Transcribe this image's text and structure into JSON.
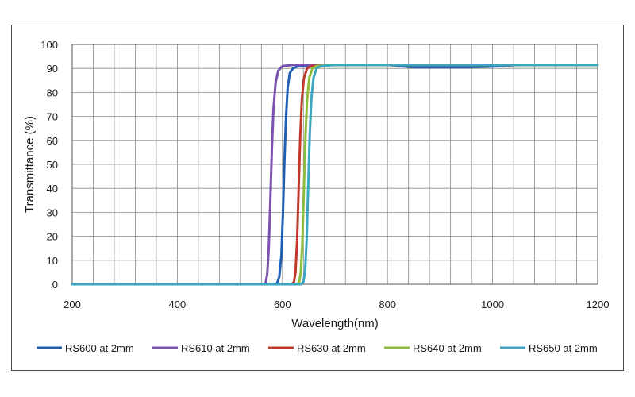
{
  "chart_data": {
    "type": "line",
    "title": "",
    "xlabel": "Wavelength(nm)",
    "ylabel": "Transmittance (%)",
    "xlim": [
      200,
      1200
    ],
    "ylim": [
      0,
      100
    ],
    "x_ticks": [
      200,
      400,
      600,
      800,
      1000,
      1200
    ],
    "y_ticks": [
      0,
      10,
      20,
      30,
      40,
      50,
      60,
      70,
      80,
      90,
      100
    ],
    "grid": true,
    "legend_position": "bottom",
    "series": [
      {
        "name": "RS600 at 2mm",
        "color": "#1f5fb4",
        "points": [
          [
            200,
            0
          ],
          [
            586,
            0
          ],
          [
            590,
            0.5
          ],
          [
            594,
            3
          ],
          [
            598,
            12
          ],
          [
            601,
            30
          ],
          [
            604,
            52
          ],
          [
            607,
            70
          ],
          [
            610,
            82
          ],
          [
            614,
            88
          ],
          [
            620,
            90
          ],
          [
            630,
            91
          ],
          [
            660,
            91
          ],
          [
            700,
            91.5
          ],
          [
            800,
            91.5
          ],
          [
            850,
            90.5
          ],
          [
            900,
            90.5
          ],
          [
            950,
            90.5
          ],
          [
            1000,
            90.8
          ],
          [
            1050,
            91.5
          ],
          [
            1200,
            91.5
          ]
        ]
      },
      {
        "name": "RS610 at 2mm",
        "color": "#7b50b0",
        "points": [
          [
            200,
            0
          ],
          [
            564,
            0
          ],
          [
            568,
            0.5
          ],
          [
            571,
            4
          ],
          [
            574,
            15
          ],
          [
            577,
            35
          ],
          [
            580,
            57
          ],
          [
            583,
            73
          ],
          [
            587,
            84
          ],
          [
            592,
            89
          ],
          [
            600,
            91
          ],
          [
            620,
            91.5
          ],
          [
            700,
            91.5
          ],
          [
            1200,
            91.5
          ]
        ]
      },
      {
        "name": "RS630 at 2mm",
        "color": "#c0392b",
        "points": [
          [
            200,
            0
          ],
          [
            618,
            0
          ],
          [
            622,
            1
          ],
          [
            625,
            5
          ],
          [
            628,
            18
          ],
          [
            631,
            40
          ],
          [
            634,
            62
          ],
          [
            637,
            77
          ],
          [
            641,
            86
          ],
          [
            647,
            90
          ],
          [
            655,
            91
          ],
          [
            680,
            91.5
          ],
          [
            1200,
            91.5
          ]
        ]
      },
      {
        "name": "RS640 at 2mm",
        "color": "#8dbb3a",
        "points": [
          [
            200,
            0
          ],
          [
            628,
            0
          ],
          [
            632,
            1
          ],
          [
            635,
            5
          ],
          [
            638,
            18
          ],
          [
            641,
            40
          ],
          [
            644,
            62
          ],
          [
            647,
            77
          ],
          [
            651,
            86
          ],
          [
            657,
            90
          ],
          [
            665,
            91
          ],
          [
            690,
            91.5
          ],
          [
            1200,
            91.5
          ]
        ]
      },
      {
        "name": "RS650 at 2mm",
        "color": "#3ba7c0",
        "points": [
          [
            200,
            0
          ],
          [
            636,
            0
          ],
          [
            640,
            1
          ],
          [
            643,
            5
          ],
          [
            646,
            18
          ],
          [
            649,
            40
          ],
          [
            652,
            62
          ],
          [
            655,
            77
          ],
          [
            659,
            86
          ],
          [
            665,
            90
          ],
          [
            673,
            91
          ],
          [
            700,
            91.5
          ],
          [
            1200,
            91.5
          ]
        ]
      }
    ]
  }
}
